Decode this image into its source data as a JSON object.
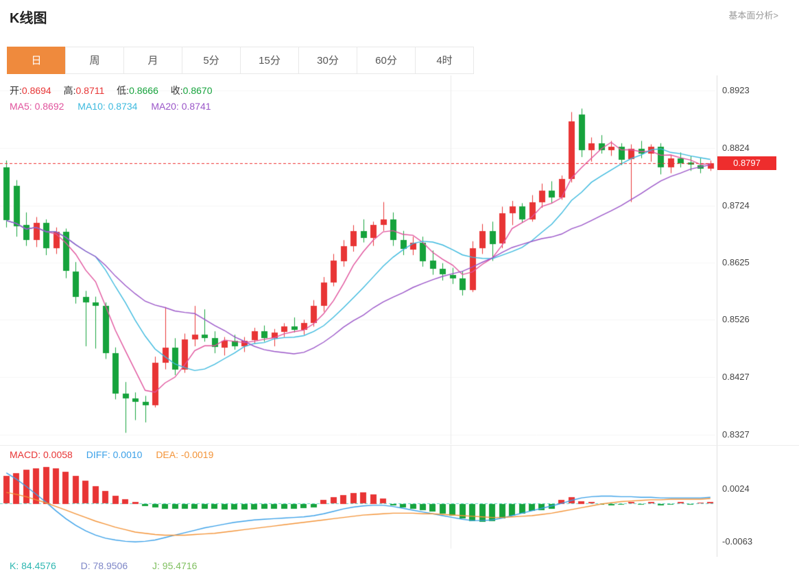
{
  "header": {
    "title": "K线图",
    "link": "基本面分析>"
  },
  "tabs": {
    "items": [
      "日",
      "周",
      "月",
      "5分",
      "15分",
      "30分",
      "60分",
      "4时"
    ],
    "active_index": 0
  },
  "legend": {
    "ohlc": [
      {
        "label": "开:",
        "value": "0.8694"
      },
      {
        "label": "高:",
        "value": "0.8711"
      },
      {
        "label": "低:",
        "value": "0.8666"
      },
      {
        "label": "收:",
        "value": "0.8670"
      }
    ],
    "ma": [
      {
        "text": "MA5: 0.8692"
      },
      {
        "text": "MA10: 0.8734"
      },
      {
        "text": "MA20: 0.8741"
      }
    ]
  },
  "macd_legend": [
    {
      "text": "MACD: 0.0058"
    },
    {
      "text": "DIFF: 0.0010"
    },
    {
      "text": "DEA: -0.0019"
    }
  ],
  "kdj_legend": [
    {
      "text": "K: 84.4576"
    },
    {
      "text": "D: 78.9506"
    },
    {
      "text": "J: 95.4716"
    }
  ],
  "price_tag": "0.8797",
  "colors": {
    "up": "#e83535",
    "down": "#16a33c",
    "ma5": "#e0529c",
    "ma10": "#3bb9de",
    "ma20": "#9a55c8",
    "price_line": "#ee2d2d",
    "diff": "#3aa0e8",
    "dea": "#f39337",
    "zero_line": "#5fd4c9",
    "tab_active": "#ef8a3d",
    "kdj_k": "#2cb6b0",
    "kdj_d": "#7d86c7",
    "kdj_j": "#7fbf5f"
  },
  "chart_data": {
    "type": "candlestick",
    "title": "K线图",
    "period": "日",
    "current_price": 0.8797,
    "y_axis": {
      "labels": [
        "0.8923",
        "0.8824",
        "0.8724",
        "0.8625",
        "0.8526",
        "0.8427",
        "0.8327"
      ],
      "min": 0.831,
      "max": 0.894
    },
    "ma_periods": [
      5,
      10,
      20
    ],
    "candles": [
      [
        0.879,
        0.8802,
        0.8686,
        0.8698
      ],
      [
        0.8758,
        0.8768,
        0.867,
        0.8688
      ],
      [
        0.869,
        0.8712,
        0.8654,
        0.8664
      ],
      [
        0.8664,
        0.8704,
        0.8652,
        0.8694
      ],
      [
        0.8694,
        0.87,
        0.8638,
        0.865
      ],
      [
        0.865,
        0.8686,
        0.864,
        0.8678
      ],
      [
        0.8678,
        0.8684,
        0.8598,
        0.861
      ],
      [
        0.861,
        0.8626,
        0.8554,
        0.8566
      ],
      [
        0.8566,
        0.8576,
        0.848,
        0.8556
      ],
      [
        0.8556,
        0.8566,
        0.8476,
        0.855
      ],
      [
        0.855,
        0.8556,
        0.8458,
        0.8468
      ],
      [
        0.8468,
        0.8478,
        0.8388,
        0.8398
      ],
      [
        0.8398,
        0.8418,
        0.833,
        0.839
      ],
      [
        0.839,
        0.84,
        0.8352,
        0.8384
      ],
      [
        0.8384,
        0.8394,
        0.8348,
        0.8378
      ],
      [
        0.8378,
        0.8462,
        0.8374,
        0.8452
      ],
      [
        0.8452,
        0.8548,
        0.844,
        0.8478
      ],
      [
        0.8478,
        0.8494,
        0.843,
        0.844
      ],
      [
        0.844,
        0.8502,
        0.8434,
        0.8492
      ],
      [
        0.8492,
        0.855,
        0.848,
        0.85
      ],
      [
        0.85,
        0.8544,
        0.8488,
        0.8494
      ],
      [
        0.8494,
        0.8506,
        0.8468,
        0.8478
      ],
      [
        0.8478,
        0.8496,
        0.8464,
        0.849
      ],
      [
        0.849,
        0.85,
        0.8474,
        0.848
      ],
      [
        0.848,
        0.8496,
        0.847,
        0.849
      ],
      [
        0.849,
        0.8512,
        0.8484,
        0.8506
      ],
      [
        0.8506,
        0.8516,
        0.8488,
        0.8494
      ],
      [
        0.8494,
        0.851,
        0.848,
        0.8504
      ],
      [
        0.8504,
        0.852,
        0.8496,
        0.8514
      ],
      [
        0.8514,
        0.853,
        0.8504,
        0.8508
      ],
      [
        0.8508,
        0.8526,
        0.85,
        0.852
      ],
      [
        0.852,
        0.856,
        0.8514,
        0.855
      ],
      [
        0.855,
        0.86,
        0.854,
        0.859
      ],
      [
        0.859,
        0.864,
        0.8584,
        0.8628
      ],
      [
        0.8628,
        0.8664,
        0.8618,
        0.8654
      ],
      [
        0.8654,
        0.869,
        0.8644,
        0.868
      ],
      [
        0.868,
        0.87,
        0.866,
        0.8668
      ],
      [
        0.8668,
        0.8696,
        0.8654,
        0.869
      ],
      [
        0.869,
        0.873,
        0.868,
        0.87
      ],
      [
        0.87,
        0.8712,
        0.8654,
        0.8664
      ],
      [
        0.8664,
        0.868,
        0.8638,
        0.8648
      ],
      [
        0.8648,
        0.867,
        0.8638,
        0.866
      ],
      [
        0.866,
        0.867,
        0.8618,
        0.8628
      ],
      [
        0.8628,
        0.8646,
        0.8604,
        0.8614
      ],
      [
        0.8614,
        0.8624,
        0.8594,
        0.8604
      ],
      [
        0.8604,
        0.8616,
        0.8588,
        0.8598
      ],
      [
        0.8598,
        0.861,
        0.8568,
        0.8578
      ],
      [
        0.8578,
        0.8662,
        0.8574,
        0.865
      ],
      [
        0.865,
        0.8692,
        0.864,
        0.868
      ],
      [
        0.868,
        0.8696,
        0.8628,
        0.8658
      ],
      [
        0.8658,
        0.8722,
        0.865,
        0.871
      ],
      [
        0.871,
        0.8732,
        0.869,
        0.8722
      ],
      [
        0.8722,
        0.8728,
        0.8694,
        0.87
      ],
      [
        0.87,
        0.8742,
        0.8696,
        0.873
      ],
      [
        0.873,
        0.8762,
        0.872,
        0.875
      ],
      [
        0.875,
        0.8766,
        0.8728,
        0.8738
      ],
      [
        0.8738,
        0.8776,
        0.8734,
        0.877
      ],
      [
        0.877,
        0.8886,
        0.8764,
        0.887
      ],
      [
        0.8882,
        0.8892,
        0.8808,
        0.882
      ],
      [
        0.882,
        0.8842,
        0.88,
        0.8832
      ],
      [
        0.8832,
        0.8846,
        0.8814,
        0.882
      ],
      [
        0.882,
        0.8836,
        0.881,
        0.8826
      ],
      [
        0.8826,
        0.8832,
        0.8794,
        0.8804
      ],
      [
        0.8804,
        0.883,
        0.873,
        0.8822
      ],
      [
        0.8822,
        0.8836,
        0.8806,
        0.8814
      ],
      [
        0.8814,
        0.883,
        0.88,
        0.8826
      ],
      [
        0.8826,
        0.8832,
        0.8778,
        0.879
      ],
      [
        0.879,
        0.8812,
        0.878,
        0.8806
      ],
      [
        0.8806,
        0.8816,
        0.879,
        0.8798
      ],
      [
        0.8798,
        0.881,
        0.8784,
        0.8794
      ],
      [
        0.8794,
        0.8806,
        0.878,
        0.8788
      ],
      [
        0.8788,
        0.8802,
        0.8784,
        0.8797
      ]
    ],
    "macd": {
      "y_axis": {
        "labels": [
          "0.0024",
          "-0.0063"
        ],
        "min": -0.0074,
        "max": 0.0089
      },
      "hist": [
        0.0045,
        0.005,
        0.0055,
        0.0058,
        0.006,
        0.0058,
        0.0052,
        0.0045,
        0.0037,
        0.0028,
        0.002,
        0.0013,
        0.0007,
        0.0003,
        -0.0004,
        -0.0006,
        -0.0008,
        -0.0008,
        -0.0008,
        -0.0008,
        -0.0008,
        -0.0008,
        -0.0009,
        -0.0009,
        -0.0009,
        -0.0009,
        -0.0008,
        -0.0008,
        -0.0008,
        -0.0008,
        -0.0007,
        -0.0006,
        0.0006,
        0.001,
        0.0014,
        0.0017,
        0.0018,
        0.0015,
        0.0008,
        -0.0003,
        -0.0006,
        -0.0008,
        -0.001,
        -0.0013,
        -0.0016,
        -0.002,
        -0.0024,
        -0.0028,
        -0.003,
        -0.0028,
        -0.0024,
        -0.002,
        -0.0016,
        -0.0012,
        -0.001,
        -0.0008,
        0.0006,
        0.001,
        0.0004,
        0.0002,
        -0.0002,
        -0.0003,
        -0.0002,
        0.0002,
        -0.0002,
        0.0002,
        -0.0003,
        -0.0002,
        0.0002,
        -0.0002,
        0.0001,
        0.0002
      ],
      "diff": [
        0.005,
        0.004,
        0.0028,
        0.0015,
        0.0002,
        -0.0012,
        -0.0025,
        -0.0036,
        -0.0045,
        -0.0052,
        -0.0057,
        -0.006,
        -0.0062,
        -0.0063,
        -0.0062,
        -0.006,
        -0.0056,
        -0.0052,
        -0.0048,
        -0.0044,
        -0.004,
        -0.0037,
        -0.0034,
        -0.0031,
        -0.0029,
        -0.0027,
        -0.0026,
        -0.0025,
        -0.0024,
        -0.0023,
        -0.0022,
        -0.002,
        -0.0017,
        -0.0013,
        -0.0009,
        -0.0006,
        -0.0004,
        -0.0003,
        -0.0003,
        -0.0005,
        -0.0008,
        -0.0011,
        -0.0014,
        -0.0017,
        -0.002,
        -0.0023,
        -0.0026,
        -0.0028,
        -0.0028,
        -0.0027,
        -0.0024,
        -0.002,
        -0.0016,
        -0.0012,
        -0.0008,
        -0.0004,
        0.0,
        0.0005,
        0.0009,
        0.0011,
        0.0012,
        0.0012,
        0.0011,
        0.0011,
        0.001,
        0.001,
        0.0009,
        0.0009,
        0.0009,
        0.0009,
        0.0009,
        0.001
      ],
      "dea": [
        0.0018,
        0.0015,
        0.0011,
        0.0006,
        0.0001,
        -0.0005,
        -0.0011,
        -0.0017,
        -0.0023,
        -0.0029,
        -0.0034,
        -0.0039,
        -0.0043,
        -0.0047,
        -0.0049,
        -0.0051,
        -0.0052,
        -0.0052,
        -0.0052,
        -0.0051,
        -0.005,
        -0.0049,
        -0.0047,
        -0.0045,
        -0.0043,
        -0.0041,
        -0.0039,
        -0.0037,
        -0.0035,
        -0.0033,
        -0.0031,
        -0.0029,
        -0.0027,
        -0.0025,
        -0.0023,
        -0.0021,
        -0.0019,
        -0.0018,
        -0.0017,
        -0.0016,
        -0.0016,
        -0.0016,
        -0.0017,
        -0.0017,
        -0.0018,
        -0.0019,
        -0.002,
        -0.0021,
        -0.0022,
        -0.0023,
        -0.0023,
        -0.0022,
        -0.0021,
        -0.002,
        -0.0018,
        -0.0016,
        -0.0013,
        -0.001,
        -0.0007,
        -0.0004,
        -0.0001,
        0.0001,
        0.0003,
        0.0004,
        0.0005,
        0.0006,
        0.0006,
        0.0007,
        0.0007,
        0.0007,
        0.0007,
        0.0008
      ]
    },
    "kdj": {
      "K": 84.4576,
      "D": 78.9506,
      "J": 95.4716
    }
  }
}
